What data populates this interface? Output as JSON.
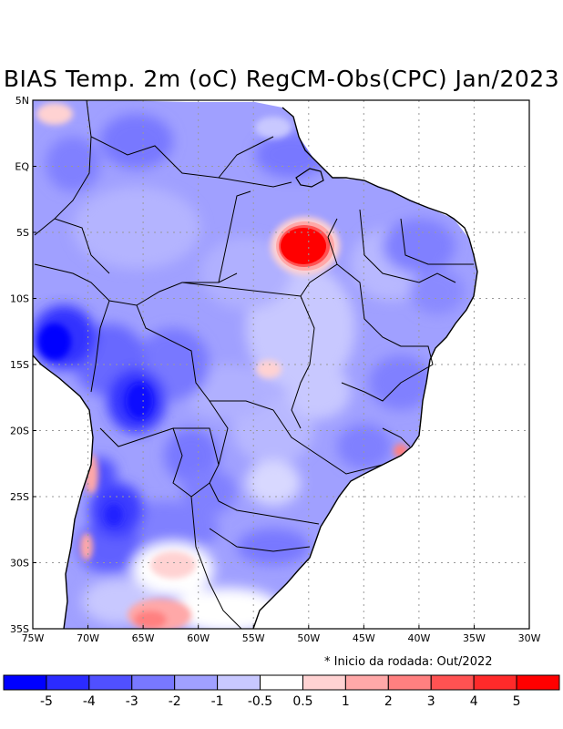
{
  "title": "BIAS Temp. 2m (oC) RegCM-Obs(CPC) Jan/2023",
  "footnote": "* Inicio da rodada: Out/2022",
  "axes": {
    "lat_ticks": [
      "5N",
      "EQ",
      "5S",
      "10S",
      "15S",
      "20S",
      "25S",
      "30S",
      "35S"
    ],
    "lon_ticks": [
      "75W",
      "70W",
      "65W",
      "60W",
      "55W",
      "50W",
      "45W",
      "40W",
      "35W",
      "30W"
    ],
    "lat_range": [
      -35,
      5
    ],
    "lon_range": [
      -75,
      -30
    ]
  },
  "colorbar": {
    "labels": [
      "-5",
      "-4",
      "-3",
      "-2",
      "-1",
      "-0.5",
      "0.5",
      "1",
      "2",
      "3",
      "4",
      "5"
    ],
    "colors": [
      "#0000ff",
      "#2b2bff",
      "#5050ff",
      "#7878ff",
      "#a0a0ff",
      "#c8c8ff",
      "#ffffff",
      "#ffd2d2",
      "#ffa8a8",
      "#ff8080",
      "#ff5252",
      "#ff2a2a",
      "#ff0000"
    ]
  },
  "features": [
    {
      "name": "warm-bias-para",
      "value": 5,
      "lon": -51.5,
      "lat": -6.5
    },
    {
      "name": "cold-bias-bolivia",
      "value": -4,
      "lon": -65,
      "lat": -17.5
    },
    {
      "name": "cold-bias-peru",
      "value": -4,
      "lon": -72,
      "lat": -13
    },
    {
      "name": "cold-bias-paraguay-north-argentina",
      "value": -4,
      "lon": -67,
      "lat": -27
    },
    {
      "name": "warm-bias-argentina-south",
      "value": 3,
      "lon": -63,
      "lat": -34
    },
    {
      "name": "warm-bias-rio-de-janeiro",
      "value": 3,
      "lon": -42,
      "lat": -21.5
    }
  ]
}
